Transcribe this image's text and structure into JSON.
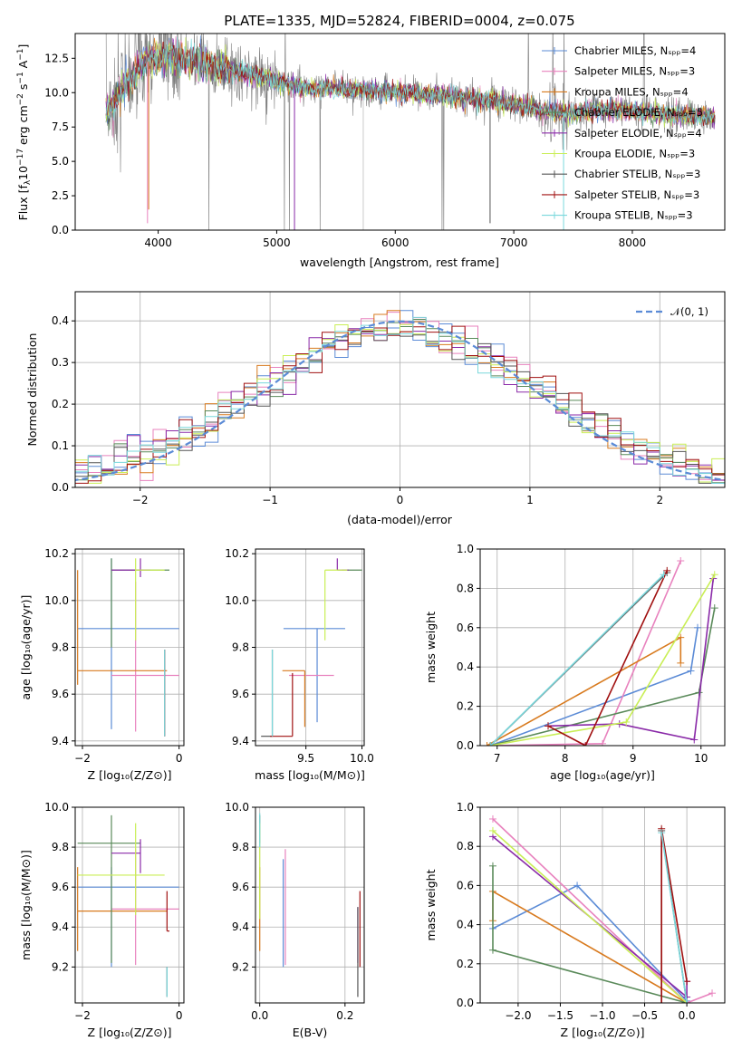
{
  "colors": [
    "#5b8bd6",
    "#e882be",
    "#d87a1e",
    "#5a8a5a",
    "#8a2aa8",
    "#c9ee55",
    "#555555",
    "#a01010",
    "#7ad8dc"
  ],
  "chart_data": [
    {
      "id": "spectrum",
      "type": "line",
      "title": "PLATE=1335, MJD=52824, FIBERID=0004, z=0.075",
      "xlabel": "wavelength [Angstrom, rest frame]",
      "ylabel": "Flux [fλ10⁻¹⁷ erg cm⁻² s⁻¹ A⁻¹]",
      "xlim": [
        3300,
        8780
      ],
      "ylim": [
        0,
        14.3
      ],
      "xticks": [
        4000,
        5000,
        6000,
        7000,
        8000
      ],
      "yticks": [
        0.0,
        2.5,
        5.0,
        7.5,
        10.0,
        12.5
      ],
      "grid": false,
      "legend_position": "top-right",
      "legend": [
        "Chabrier MILES, Nₛₚₚ=4",
        "Salpeter MILES, Nₛₚₚ=3",
        "Kroupa MILES, Nₛₚₚ=4",
        "Chabrier ELODIE, Nₛₚₚ=5",
        "Salpeter ELODIE, Nₛₚₚ=4",
        "Kroupa ELODIE, Nₛₚₚ=3",
        "Chabrier STELIB, Nₛₚₚ=3",
        "Salpeter STELIB, Nₛₚₚ=3",
        "Kroupa STELIB, Nₛₚₚ=3"
      ],
      "model_curve": {
        "x": [
          3550,
          3700,
          3850,
          3950,
          4100,
          4300,
          4500,
          4700,
          4900,
          5100,
          5300,
          5500,
          5700,
          5900,
          6100,
          6300,
          6500,
          6700,
          6900,
          7100,
          7300,
          7500,
          7700,
          7900,
          8100,
          8300,
          8500,
          8700
        ],
        "y": [
          8.3,
          10.3,
          12.0,
          12.4,
          12.7,
          12.3,
          11.8,
          11.5,
          11.1,
          10.6,
          10.3,
          10.3,
          10.2,
          10.1,
          10.0,
          9.85,
          9.7,
          9.5,
          9.3,
          9.0,
          8.6,
          8.5,
          8.7,
          8.7,
          8.6,
          8.4,
          8.3,
          8.2
        ]
      }
    },
    {
      "id": "residuals",
      "type": "histogram",
      "xlabel": "(data-model)/error",
      "ylabel": "Normed distribution",
      "xlim": [
        -2.5,
        2.5
      ],
      "ylim": [
        0,
        0.47
      ],
      "xticks": [
        -2,
        -1,
        0,
        1,
        2
      ],
      "yticks": [
        0.0,
        0.1,
        0.2,
        0.3,
        0.4
      ],
      "grid": true,
      "legend": "𝒩(0, 1)",
      "legend_position": "top-right",
      "bin_width": 0.1,
      "reference": "gaussian N(0,1)"
    },
    {
      "id": "age_vs_Z",
      "type": "errorbar",
      "xlabel": "Z [log₁₀(Z/Z⊙)]",
      "ylabel": "age  [log₁₀(age/yr)]",
      "xlim": [
        -2.15,
        0.1
      ],
      "ylim": [
        9.38,
        10.22
      ],
      "xticks": [
        -2,
        0
      ],
      "yticks": [
        9.4,
        9.6,
        9.8,
        10.0,
        10.2
      ],
      "points": [
        {
          "c": 0,
          "x": -1.4,
          "y": 9.88,
          "xerr": [
            0.7,
            1.4
          ],
          "yerr": [
            0.43,
            0.3
          ]
        },
        {
          "c": 1,
          "x": -0.9,
          "y": 9.68,
          "xerr": [
            0.5,
            0.9
          ],
          "yerr": [
            0.24,
            0.4
          ]
        },
        {
          "c": 2,
          "x": -2.1,
          "y": 9.7,
          "xerr": [
            0.0,
            1.85
          ],
          "yerr": [
            0.06,
            0.43
          ]
        },
        {
          "c": 3,
          "x": -1.4,
          "y": 10.13,
          "xerr": [
            0.0,
            1.2
          ],
          "yerr": [
            0.33,
            0.05
          ]
        },
        {
          "c": 4,
          "x": -0.8,
          "y": 10.13,
          "xerr": [
            0.6,
            0.2
          ],
          "yerr": [
            0.03,
            0.05
          ]
        },
        {
          "c": 5,
          "x": -0.9,
          "y": 10.13,
          "xerr": [
            0.0,
            0.6
          ],
          "yerr": [
            0.3,
            0.05
          ]
        },
        {
          "c": 6,
          "x": -0.3,
          "y": 9.42,
          "xerr": [
            0.0,
            0.0
          ],
          "yerr": [
            0.0,
            0.37
          ]
        },
        {
          "c": 7,
          "x": -0.3,
          "y": 9.42,
          "xerr": [
            0.0,
            0.0
          ],
          "yerr": [
            0.0,
            0.37
          ]
        },
        {
          "c": 8,
          "x": -0.3,
          "y": 9.42,
          "xerr": [
            0.0,
            0.0
          ],
          "yerr": [
            0.0,
            0.37
          ]
        }
      ]
    },
    {
      "id": "age_vs_mass",
      "type": "errorbar",
      "xlabel": "mass [log₁₀(M/M⊙)]",
      "ylabel": "",
      "xlim": [
        9.05,
        10.02
      ],
      "ylim": [
        9.38,
        10.22
      ],
      "xticks": [
        9.5,
        10.0
      ],
      "yticks": [
        9.4,
        9.6,
        9.8,
        10.0,
        10.2
      ],
      "points": [
        {
          "c": 0,
          "x": 9.6,
          "y": 9.88,
          "xerr": [
            0.3,
            0.25
          ],
          "yerr": [
            0.4,
            0.0
          ]
        },
        {
          "c": 1,
          "x": 9.49,
          "y": 9.68,
          "xerr": [
            0.14,
            0.26
          ],
          "yerr": [
            0.0,
            0.0
          ]
        },
        {
          "c": 2,
          "x": 9.49,
          "y": 9.7,
          "xerr": [
            0.2,
            0.0
          ],
          "yerr": [
            0.24,
            0.0
          ]
        },
        {
          "c": 3,
          "x": 9.82,
          "y": 10.13,
          "xerr": [
            0.0,
            0.18
          ],
          "yerr": [
            0.0,
            0.0
          ]
        },
        {
          "c": 4,
          "x": 9.78,
          "y": 10.13,
          "xerr": [
            0.0,
            0.1
          ],
          "yerr": [
            0.0,
            0.05
          ]
        },
        {
          "c": 5,
          "x": 9.67,
          "y": 10.13,
          "xerr": [
            0.0,
            0.2
          ],
          "yerr": [
            0.3,
            0.0
          ]
        },
        {
          "c": 6,
          "x": 9.2,
          "y": 9.42,
          "xerr": [
            0.1,
            0.0
          ],
          "yerr": [
            0.0,
            0.37
          ]
        },
        {
          "c": 7,
          "x": 9.38,
          "y": 9.42,
          "xerr": [
            0.2,
            0.0
          ],
          "yerr": [
            0.0,
            0.27
          ]
        },
        {
          "c": 8,
          "x": 9.2,
          "y": 9.42,
          "xerr": [
            0.0,
            0.0
          ],
          "yerr": [
            0.0,
            0.37
          ]
        }
      ]
    },
    {
      "id": "weight_vs_age",
      "type": "line",
      "xlabel": "age  [log₁₀(age/yr)]",
      "ylabel": "mass weight",
      "xlim": [
        6.75,
        10.35
      ],
      "ylim": [
        0,
        1.0
      ],
      "xticks": [
        7,
        8,
        9,
        10
      ],
      "yticks": [
        0.0,
        0.2,
        0.4,
        0.6,
        0.8,
        1.0
      ],
      "grid": true,
      "series": [
        {
          "c": 0,
          "x": [
            6.9,
            9.85,
            9.95
          ],
          "y": [
            0.0,
            0.38,
            0.6
          ]
        },
        {
          "c": 1,
          "x": [
            6.9,
            8.55,
            9.7
          ],
          "y": [
            0.0,
            0.01,
            0.94
          ]
        },
        {
          "c": 2,
          "x": [
            6.85,
            9.7,
            9.7
          ],
          "y": [
            0.0,
            0.55,
            0.42
          ]
        },
        {
          "c": 3,
          "x": [
            6.9,
            9.97,
            10.2
          ],
          "y": [
            0.0,
            0.27,
            0.7
          ]
        },
        {
          "c": 4,
          "x": [
            7.75,
            8.8,
            9.9,
            10.18
          ],
          "y": [
            0.1,
            0.11,
            0.03,
            0.85
          ]
        },
        {
          "c": 5,
          "x": [
            6.9,
            8.9,
            10.2
          ],
          "y": [
            0.0,
            0.12,
            0.87
          ]
        },
        {
          "c": 6,
          "x": [
            6.9,
            9.5
          ],
          "y": [
            0.0,
            0.88
          ]
        },
        {
          "c": 7,
          "x": [
            7.75,
            8.3,
            9.5
          ],
          "y": [
            0.1,
            0.0,
            0.89
          ]
        },
        {
          "c": 8,
          "x": [
            6.9,
            9.45
          ],
          "y": [
            0.0,
            0.87
          ]
        }
      ]
    },
    {
      "id": "mass_vs_Z",
      "type": "errorbar",
      "xlabel": "Z [log₁₀(Z/Z⊙)]",
      "ylabel": "mass [log₁₀(M/M⊙)]",
      "xlim": [
        -2.15,
        0.1
      ],
      "ylim": [
        9.02,
        10.0
      ],
      "xticks": [
        -2,
        0
      ],
      "yticks": [
        9.2,
        9.4,
        9.6,
        9.8,
        10.0
      ],
      "points": [
        {
          "c": 0,
          "x": -1.4,
          "y": 9.6,
          "xerr": [
            0.7,
            1.4
          ],
          "yerr": [
            0.4,
            0.1
          ]
        },
        {
          "c": 1,
          "x": -0.9,
          "y": 9.49,
          "xerr": [
            0.5,
            0.9
          ],
          "yerr": [
            0.28,
            0.3
          ]
        },
        {
          "c": 2,
          "x": -2.1,
          "y": 9.48,
          "xerr": [
            0.0,
            1.85
          ],
          "yerr": [
            0.2,
            0.22
          ]
        },
        {
          "c": 3,
          "x": -1.4,
          "y": 9.82,
          "xerr": [
            0.7,
            0.6
          ],
          "yerr": [
            0.6,
            0.14
          ]
        },
        {
          "c": 4,
          "x": -0.8,
          "y": 9.77,
          "xerr": [
            0.6,
            0.0
          ],
          "yerr": [
            0.1,
            0.07
          ]
        },
        {
          "c": 5,
          "x": -0.9,
          "y": 9.66,
          "xerr": [
            1.2,
            0.6
          ],
          "yerr": [
            0.2,
            0.26
          ]
        },
        {
          "c": 6,
          "x": -0.25,
          "y": 9.2,
          "xerr": [
            0.0,
            0.0
          ],
          "yerr": [
            0.15,
            0.0
          ]
        },
        {
          "c": 7,
          "x": -0.25,
          "y": 9.38,
          "xerr": [
            0.0,
            0.05
          ],
          "yerr": [
            0.0,
            0.2
          ]
        },
        {
          "c": 8,
          "x": -0.25,
          "y": 9.2,
          "xerr": [
            0.0,
            0.0
          ],
          "yerr": [
            0.15,
            0.0
          ]
        }
      ]
    },
    {
      "id": "mass_vs_ebv",
      "type": "errorbar",
      "xlabel": "E(B-V)",
      "ylabel": "",
      "xlim": [
        -0.01,
        0.245
      ],
      "ylim": [
        9.02,
        10.0
      ],
      "xticks": [
        0.0,
        0.2
      ],
      "yticks": [
        9.2,
        9.4,
        9.6,
        9.8,
        10.0
      ],
      "points": [
        {
          "c": 0,
          "x": 0.055,
          "y": 9.6,
          "yerr": [
            0.4,
            0.14
          ]
        },
        {
          "c": 1,
          "x": 0.06,
          "y": 9.49,
          "yerr": [
            0.28,
            0.3
          ]
        },
        {
          "c": 2,
          "x": 0.0,
          "y": 9.48,
          "yerr": [
            0.2,
            0.22
          ]
        },
        {
          "c": 3,
          "x": 0.0,
          "y": 9.82,
          "yerr": [
            0.0,
            0.14
          ]
        },
        {
          "c": 4,
          "x": 0.23,
          "y": 9.3,
          "yerr": [
            0.08,
            0.2
          ]
        },
        {
          "c": 5,
          "x": 0.0,
          "y": 9.66,
          "yerr": [
            0.22,
            0.26
          ]
        },
        {
          "c": 6,
          "x": 0.23,
          "y": 9.2,
          "yerr": [
            0.15,
            0.3
          ]
        },
        {
          "c": 7,
          "x": 0.235,
          "y": 9.38,
          "yerr": [
            0.18,
            0.2
          ]
        },
        {
          "c": 8,
          "x": 0.0,
          "y": 9.8,
          "yerr": [
            0.0,
            0.17
          ]
        }
      ]
    },
    {
      "id": "weight_vs_Z",
      "type": "line",
      "xlabel": "Z [log₁₀(Z/Z⊙)]",
      "ylabel": "mass weight",
      "xlim": [
        -2.45,
        0.45
      ],
      "ylim": [
        0,
        1.0
      ],
      "xticks": [
        -2.0,
        -1.5,
        -1.0,
        -0.5,
        0.0
      ],
      "yticks": [
        0.0,
        0.2,
        0.4,
        0.6,
        0.8,
        1.0
      ],
      "grid": true,
      "series": [
        {
          "c": 0,
          "x": [
            -2.3,
            -1.3,
            0.0
          ],
          "y": [
            0.38,
            0.6,
            0.01
          ]
        },
        {
          "c": 1,
          "x": [
            -2.3,
            0.0,
            0.3
          ],
          "y": [
            0.94,
            0.0,
            0.05
          ]
        },
        {
          "c": 2,
          "x": [
            -2.3,
            -2.3,
            0.0
          ],
          "y": [
            0.42,
            0.57,
            0.0
          ]
        },
        {
          "c": 3,
          "x": [
            -2.3,
            -2.3,
            0.0
          ],
          "y": [
            0.7,
            0.27,
            0.0
          ]
        },
        {
          "c": 4,
          "x": [
            -2.3,
            0.0,
            0.0
          ],
          "y": [
            0.85,
            0.03,
            0.11
          ]
        },
        {
          "c": 5,
          "x": [
            -2.3,
            0.0
          ],
          "y": [
            0.88,
            0.0
          ]
        },
        {
          "c": 6,
          "x": [
            -0.3,
            -0.3,
            0.0
          ],
          "y": [
            0.0,
            0.88,
            0.0
          ]
        },
        {
          "c": 7,
          "x": [
            -0.3,
            -0.3,
            0.0
          ],
          "y": [
            0.0,
            0.89,
            0.11
          ]
        },
        {
          "c": 8,
          "x": [
            -0.3,
            0.0
          ],
          "y": [
            0.87,
            0.0
          ]
        }
      ]
    }
  ]
}
